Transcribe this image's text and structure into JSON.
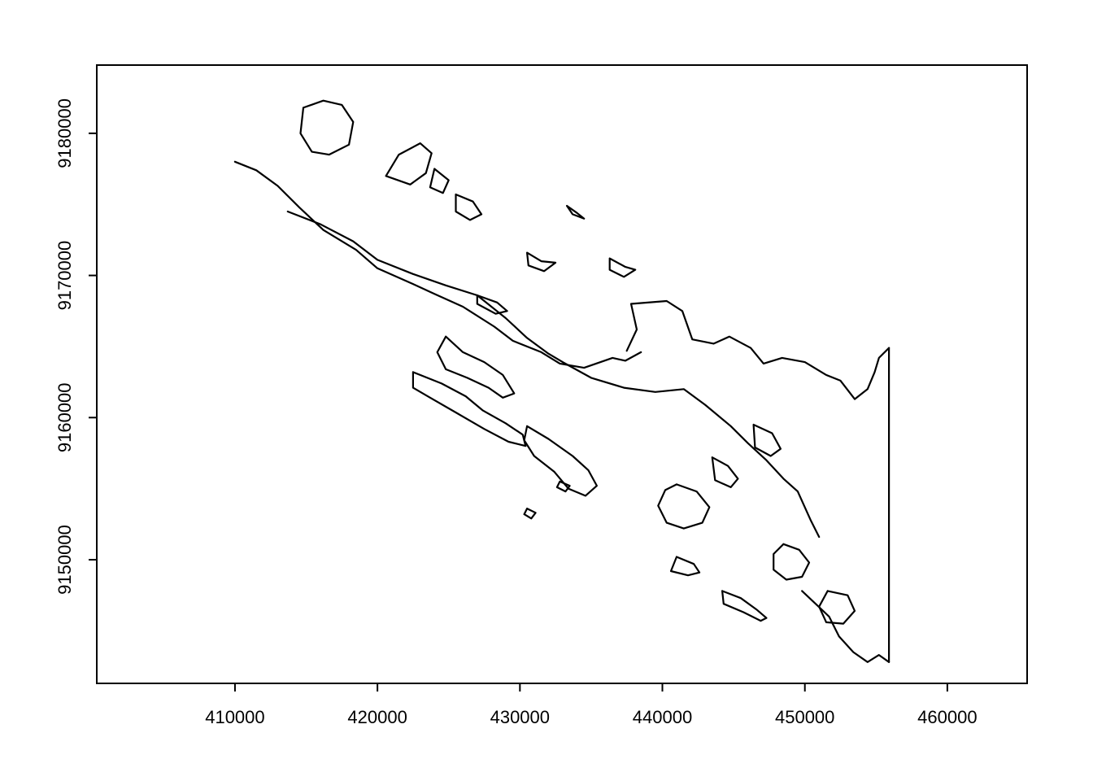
{
  "chart_data": {
    "type": "map",
    "title": "",
    "xlabel": "",
    "ylabel": "",
    "xlim": [
      400300,
      465600
    ],
    "ylim": [
      9141300,
      9184800
    ],
    "x_ticks": [
      410000,
      420000,
      430000,
      440000,
      450000,
      460000
    ],
    "y_ticks": [
      9150000,
      9160000,
      9170000,
      9180000
    ],
    "x_tick_labels": [
      "410000",
      "420000",
      "430000",
      "440000",
      "450000",
      "460000"
    ],
    "y_tick_labels": [
      "9150000",
      "9160000",
      "9170000",
      "9180000"
    ],
    "grid": false,
    "stroke_color": "#000000",
    "features": [
      {
        "name": "northeast-coast",
        "coords": [
          [
            410000,
            9178000
          ],
          [
            411500,
            9177400
          ],
          [
            413000,
            9176300
          ],
          [
            414500,
            9174800
          ],
          [
            416200,
            9173200
          ],
          [
            418500,
            9171800
          ],
          [
            420000,
            9170500
          ],
          [
            422500,
            9169400
          ],
          [
            424000,
            9168700
          ],
          [
            426000,
            9167800
          ],
          [
            428200,
            9166400
          ],
          [
            429500,
            9165400
          ],
          [
            431500,
            9164600
          ],
          [
            432800,
            9163800
          ],
          [
            434500,
            9163500
          ],
          [
            436500,
            9164200
          ],
          [
            437400,
            9164000
          ],
          [
            438500,
            9164600
          ]
        ]
      },
      {
        "name": "southwest-coast",
        "coords": [
          [
            413700,
            9174500
          ],
          [
            416000,
            9173600
          ],
          [
            418300,
            9172400
          ],
          [
            420000,
            9171100
          ],
          [
            422500,
            9170100
          ],
          [
            424800,
            9169300
          ],
          [
            427000,
            9168600
          ],
          [
            429000,
            9167000
          ],
          [
            430500,
            9165600
          ],
          [
            432000,
            9164500
          ],
          [
            433000,
            9163900
          ],
          [
            435000,
            9162800
          ],
          [
            437300,
            9162100
          ],
          [
            439500,
            9161800
          ],
          [
            441500,
            9162000
          ],
          [
            443000,
            9160900
          ],
          [
            444800,
            9159400
          ],
          [
            446000,
            9158200
          ],
          [
            447300,
            9157000
          ],
          [
            448500,
            9155700
          ],
          [
            449500,
            9154800
          ],
          [
            450400,
            9152800
          ],
          [
            451000,
            9151600
          ]
        ]
      },
      {
        "name": "east-coast",
        "coords": [
          [
            437500,
            9164700
          ],
          [
            438200,
            9166200
          ],
          [
            437800,
            9168000
          ],
          [
            440300,
            9168200
          ],
          [
            441400,
            9167500
          ],
          [
            442100,
            9165500
          ],
          [
            443600,
            9165200
          ],
          [
            444700,
            9165700
          ],
          [
            446200,
            9164900
          ],
          [
            447100,
            9163800
          ],
          [
            448400,
            9164200
          ],
          [
            450000,
            9163900
          ],
          [
            451500,
            9163000
          ],
          [
            452500,
            9162600
          ],
          [
            453500,
            9161300
          ],
          [
            454400,
            9162000
          ],
          [
            454900,
            9163200
          ],
          [
            455200,
            9164200
          ],
          [
            455900,
            9164900
          ]
        ]
      },
      {
        "name": "map-edge-east",
        "coords": [
          [
            455900,
            9164900
          ],
          [
            455900,
            9142800
          ]
        ]
      },
      {
        "name": "south-tip",
        "coords": [
          [
            449800,
            9147800
          ],
          [
            451700,
            9146000
          ],
          [
            452400,
            9144600
          ],
          [
            453400,
            9143500
          ],
          [
            454400,
            9142800
          ],
          [
            455200,
            9143300
          ],
          [
            455900,
            9142800
          ]
        ]
      },
      {
        "name": "northwest-lake",
        "coords": [
          [
            414800,
            9181800
          ],
          [
            416200,
            9182300
          ],
          [
            417500,
            9182000
          ],
          [
            418300,
            9180800
          ],
          [
            418000,
            9179200
          ],
          [
            416600,
            9178500
          ],
          [
            415400,
            9178700
          ],
          [
            414600,
            9180000
          ],
          [
            414800,
            9181800
          ]
        ]
      },
      {
        "name": "inlet-central",
        "coords": [
          [
            420600,
            9177000
          ],
          [
            421500,
            9178500
          ],
          [
            423000,
            9179300
          ],
          [
            423800,
            9178600
          ],
          [
            423400,
            9177200
          ],
          [
            422300,
            9176400
          ],
          [
            420600,
            9177000
          ]
        ]
      },
      {
        "name": "island-north-1",
        "coords": [
          [
            424000,
            9177500
          ],
          [
            425000,
            9176700
          ],
          [
            424600,
            9175800
          ],
          [
            423700,
            9176200
          ],
          [
            424000,
            9177500
          ]
        ]
      },
      {
        "name": "island-north-2",
        "coords": [
          [
            425500,
            9175700
          ],
          [
            426700,
            9175200
          ],
          [
            427300,
            9174300
          ],
          [
            426500,
            9173900
          ],
          [
            425500,
            9174500
          ],
          [
            425500,
            9175700
          ]
        ]
      },
      {
        "name": "island-north-3",
        "coords": [
          [
            430500,
            9171600
          ],
          [
            431500,
            9171000
          ],
          [
            432500,
            9170900
          ],
          [
            431700,
            9170300
          ],
          [
            430600,
            9170700
          ],
          [
            430500,
            9171600
          ]
        ]
      },
      {
        "name": "island-central-1",
        "coords": [
          [
            427000,
            9168600
          ],
          [
            428400,
            9168100
          ],
          [
            429100,
            9167500
          ],
          [
            428300,
            9167300
          ],
          [
            427000,
            9168000
          ],
          [
            427000,
            9168600
          ]
        ]
      },
      {
        "name": "island-central-2",
        "coords": [
          [
            436300,
            9171200
          ],
          [
            437400,
            9170600
          ],
          [
            438100,
            9170400
          ],
          [
            437300,
            9169900
          ],
          [
            436300,
            9170400
          ],
          [
            436300,
            9171200
          ]
        ]
      },
      {
        "name": "peninsula-west",
        "coords": [
          [
            424800,
            9165700
          ],
          [
            426000,
            9164600
          ],
          [
            427500,
            9163900
          ],
          [
            428800,
            9163000
          ],
          [
            429600,
            9161700
          ],
          [
            428800,
            9161400
          ],
          [
            427800,
            9162100
          ],
          [
            426300,
            9162800
          ],
          [
            424800,
            9163400
          ],
          [
            424200,
            9164600
          ],
          [
            424800,
            9165700
          ]
        ]
      },
      {
        "name": "peninsula-southwest",
        "coords": [
          [
            422500,
            9163200
          ],
          [
            424500,
            9162400
          ],
          [
            426200,
            9161500
          ],
          [
            427400,
            9160500
          ],
          [
            429000,
            9159600
          ],
          [
            430200,
            9158800
          ],
          [
            430400,
            9158000
          ],
          [
            429200,
            9158300
          ],
          [
            427500,
            9159200
          ],
          [
            425600,
            9160300
          ],
          [
            423700,
            9161400
          ],
          [
            422500,
            9162100
          ],
          [
            422500,
            9163200
          ]
        ]
      },
      {
        "name": "island-south-1",
        "coords": [
          [
            430500,
            9159400
          ],
          [
            432000,
            9158500
          ],
          [
            433700,
            9157300
          ],
          [
            434800,
            9156300
          ],
          [
            435400,
            9155200
          ],
          [
            434600,
            9154500
          ],
          [
            433400,
            9155000
          ],
          [
            432400,
            9156200
          ],
          [
            431000,
            9157300
          ],
          [
            430300,
            9158400
          ],
          [
            430500,
            9159400
          ]
        ]
      },
      {
        "name": "island-south-2",
        "coords": [
          [
            441000,
            9155300
          ],
          [
            442400,
            9154800
          ],
          [
            443300,
            9153700
          ],
          [
            442800,
            9152600
          ],
          [
            441500,
            9152200
          ],
          [
            440300,
            9152600
          ],
          [
            439700,
            9153800
          ],
          [
            440200,
            9154900
          ],
          [
            441000,
            9155300
          ]
        ]
      },
      {
        "name": "island-south-3",
        "coords": [
          [
            448500,
            9151100
          ],
          [
            449600,
            9150700
          ],
          [
            450300,
            9149800
          ],
          [
            449800,
            9148800
          ],
          [
            448700,
            9148600
          ],
          [
            447800,
            9149300
          ],
          [
            447800,
            9150400
          ],
          [
            448500,
            9151100
          ]
        ]
      },
      {
        "name": "island-south-4",
        "coords": [
          [
            451600,
            9147800
          ],
          [
            453000,
            9147500
          ],
          [
            453500,
            9146400
          ],
          [
            452700,
            9145500
          ],
          [
            451500,
            9145600
          ],
          [
            451000,
            9146700
          ],
          [
            451600,
            9147800
          ]
        ]
      },
      {
        "name": "island-south-5",
        "coords": [
          [
            441000,
            9150200
          ],
          [
            442200,
            9149700
          ],
          [
            442600,
            9149100
          ],
          [
            441800,
            9148900
          ],
          [
            440600,
            9149200
          ],
          [
            441000,
            9150200
          ]
        ]
      },
      {
        "name": "island-south-6",
        "coords": [
          [
            444200,
            9147800
          ],
          [
            445500,
            9147300
          ],
          [
            446600,
            9146500
          ],
          [
            447300,
            9145900
          ],
          [
            446900,
            9145700
          ],
          [
            445700,
            9146300
          ],
          [
            444300,
            9146900
          ],
          [
            444200,
            9147800
          ]
        ]
      },
      {
        "name": "island-east-1",
        "coords": [
          [
            443500,
            9157200
          ],
          [
            444600,
            9156600
          ],
          [
            445300,
            9155700
          ],
          [
            444800,
            9155100
          ],
          [
            443700,
            9155600
          ],
          [
            443500,
            9157200
          ]
        ]
      },
      {
        "name": "island-east-2",
        "coords": [
          [
            446400,
            9159500
          ],
          [
            447700,
            9158900
          ],
          [
            448300,
            9157800
          ],
          [
            447600,
            9157300
          ],
          [
            446500,
            9157900
          ],
          [
            446400,
            9159500
          ]
        ]
      },
      {
        "name": "island-islet-1",
        "coords": [
          [
            433300,
            9174900
          ],
          [
            434000,
            9174400
          ],
          [
            434500,
            9174000
          ],
          [
            433700,
            9174300
          ],
          [
            433300,
            9174900
          ]
        ]
      },
      {
        "name": "island-islet-2",
        "coords": [
          [
            430500,
            9153600
          ],
          [
            431100,
            9153300
          ],
          [
            430800,
            9152900
          ],
          [
            430300,
            9153200
          ],
          [
            430500,
            9153600
          ]
        ]
      },
      {
        "name": "island-islet-3",
        "coords": [
          [
            432800,
            9155500
          ],
          [
            433500,
            9155200
          ],
          [
            433200,
            9154800
          ],
          [
            432600,
            9155100
          ],
          [
            432800,
            9155500
          ]
        ]
      }
    ]
  }
}
